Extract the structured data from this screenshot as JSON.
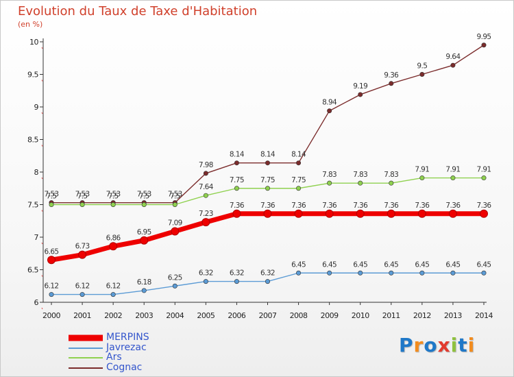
{
  "chart_data": {
    "type": "line",
    "title": "Evolution du Taux de Taxe d'Habitation",
    "subtitle": "(en %)",
    "xlabel": "",
    "ylabel": "(en %)",
    "ylim": [
      6,
      10
    ],
    "yticks": [
      "6",
      "6.5",
      "7",
      "7.5",
      "8",
      "8.5",
      "9",
      "9.5",
      "10"
    ],
    "categories": [
      "2000",
      "2001",
      "2002",
      "2003",
      "2004",
      "2005",
      "2006",
      "2007",
      "2008",
      "2009",
      "2010",
      "2011",
      "2012",
      "2013",
      "2014"
    ],
    "legend_position": "bottom-left",
    "series": [
      {
        "name": "MERPINS",
        "color": "#ee0000",
        "values": [
          6.65,
          6.73,
          6.86,
          6.95,
          7.09,
          7.23,
          7.36,
          7.36,
          7.36,
          7.36,
          7.36,
          7.36,
          7.36,
          7.36,
          7.36
        ],
        "labels": [
          "6.65",
          "6.73",
          "6.86",
          "6.95",
          "7.09",
          "7.23",
          "7.36",
          "7.36",
          "7.36",
          "7.36",
          "7.36",
          "7.36",
          "7.36",
          "7.36",
          "7.36"
        ]
      },
      {
        "name": "Javrezac",
        "color": "#5b9bd5",
        "values": [
          6.12,
          6.12,
          6.12,
          6.18,
          6.25,
          6.32,
          6.32,
          6.32,
          6.45,
          6.45,
          6.45,
          6.45,
          6.45,
          6.45,
          6.45
        ],
        "labels": [
          "6.12",
          "6.12",
          "6.12",
          "6.18",
          "6.25",
          "6.32",
          "6.32",
          "6.32",
          "6.45",
          "6.45",
          "6.45",
          "6.45",
          "6.45",
          "6.45",
          "6.45"
        ]
      },
      {
        "name": "Ars",
        "color": "#8fd14f",
        "values": [
          7.5,
          7.5,
          7.5,
          7.5,
          7.5,
          7.64,
          7.75,
          7.75,
          7.75,
          7.83,
          7.83,
          7.83,
          7.91,
          7.91,
          7.91
        ],
        "labels": [
          "7.5",
          "7.5",
          "7.5",
          "7.5",
          "7.5",
          "7.64",
          "7.75",
          "7.75",
          "7.75",
          "7.83",
          "7.83",
          "7.83",
          "7.91",
          "7.91",
          "7.91"
        ]
      },
      {
        "name": "Cognac",
        "color": "#7b2c2c",
        "values": [
          7.53,
          7.53,
          7.53,
          7.53,
          7.53,
          7.98,
          8.14,
          8.14,
          8.14,
          8.94,
          9.19,
          9.36,
          9.5,
          9.64,
          9.95
        ],
        "labels": [
          "7.53",
          "7.53",
          "7.53",
          "7.53",
          "7.53",
          "7.98",
          "8.14",
          "8.14",
          "8.14",
          "8.94",
          "9.19",
          "9.36",
          "9.5",
          "9.64",
          "9.95"
        ]
      }
    ]
  },
  "logo": {
    "text": "Proxiti",
    "letters": [
      "P",
      "r",
      "o",
      "x",
      "i",
      "t",
      "i"
    ],
    "colors": [
      "#1f78c8",
      "#f28c1e",
      "#1f78c8",
      "#e23b2e",
      "#8fc13e",
      "#1f78c8",
      "#f28c1e"
    ]
  }
}
